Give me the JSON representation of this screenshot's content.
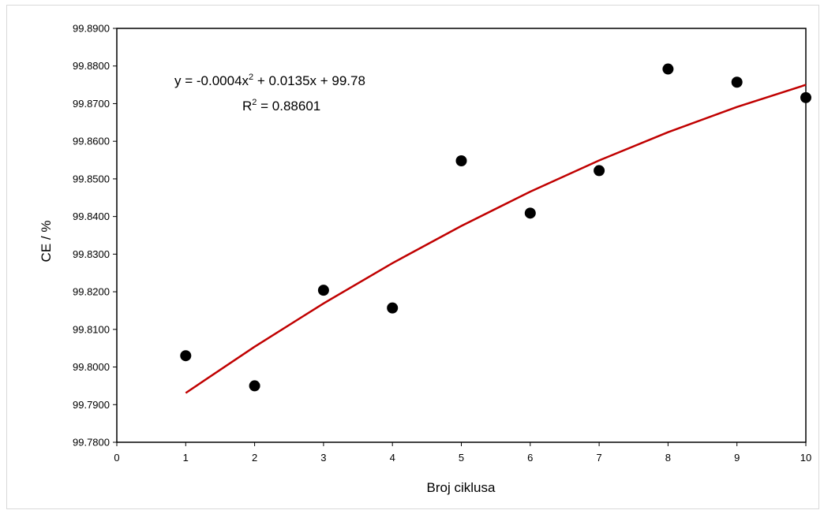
{
  "chart_data": {
    "type": "scatter",
    "title": "",
    "xlabel": "Broj ciklusa",
    "ylabel": "CE / %",
    "xlim": [
      0,
      10
    ],
    "ylim": [
      99.78,
      99.89
    ],
    "x_ticks": [
      0,
      1,
      2,
      3,
      4,
      5,
      6,
      7,
      8,
      9,
      10
    ],
    "x_tick_labels": [
      "0",
      "1",
      "2",
      "3",
      "4",
      "5",
      "6",
      "7",
      "8",
      "9",
      "10"
    ],
    "y_ticks": [
      99.78,
      99.79,
      99.8,
      99.81,
      99.82,
      99.83,
      99.84,
      99.85,
      99.86,
      99.87,
      99.88,
      99.89
    ],
    "y_tick_labels": [
      "99.7800",
      "99.7900",
      "99.8000",
      "99.8100",
      "99.8200",
      "99.8300",
      "99.8400",
      "99.8500",
      "99.8600",
      "99.8700",
      "99.8800",
      "99.8900"
    ],
    "grid": false,
    "legend": "none",
    "series": [
      {
        "type": "scatter",
        "color": "#000000",
        "x": [
          1,
          2,
          3,
          4,
          5,
          6,
          7,
          8,
          9,
          10
        ],
        "y": [
          99.803,
          99.795,
          99.8204,
          99.8157,
          99.8548,
          99.8409,
          99.8522,
          99.8792,
          99.8757,
          99.8716
        ]
      },
      {
        "type": "line",
        "color": "#c00000",
        "fit": "polynomial",
        "x": [
          1,
          2,
          3,
          4,
          5,
          6,
          7,
          8,
          9,
          10
        ],
        "y": [
          99.7931,
          99.8054,
          99.8169,
          99.8276,
          99.8375,
          99.8466,
          99.8549,
          99.8624,
          99.8691,
          99.875
        ]
      }
    ],
    "annotations": {
      "equation_prefix": "y = -0.0004x",
      "equation_exp": "2",
      "equation_suffix": " + 0.0135x + 99.78",
      "r2_prefix": "R",
      "r2_exp": "2",
      "r2_suffix": " = 0.88601"
    }
  }
}
